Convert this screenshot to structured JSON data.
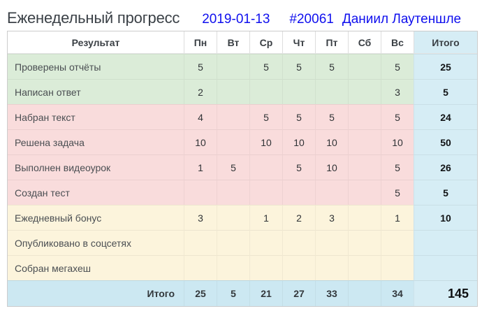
{
  "page": {
    "title": "Еженедельный прогресс",
    "date": "2019-01-13",
    "report_id": "#20061",
    "user_name": "Даниил Лаутеншле"
  },
  "colors": {
    "accent_blue_text": "#0f0fee",
    "row_green": "#dbecd8",
    "row_pink": "#f9dcdc",
    "row_cream": "#fcf4dc",
    "total_column": "#d6edf5",
    "footer_row": "#cce8f2"
  },
  "table": {
    "columns": [
      "Результат",
      "Пн",
      "Вт",
      "Ср",
      "Чт",
      "Пт",
      "Сб",
      "Вс",
      "Итого"
    ],
    "rows": [
      {
        "label": "Проверены отчёты",
        "group": "green",
        "values": [
          "5",
          "",
          "5",
          "5",
          "5",
          "",
          "5"
        ],
        "total": "25"
      },
      {
        "label": "Написан ответ",
        "group": "green",
        "values": [
          "2",
          "",
          "",
          "",
          "",
          "",
          "3"
        ],
        "total": "5"
      },
      {
        "label": "Набран текст",
        "group": "pink",
        "values": [
          "4",
          "",
          "5",
          "5",
          "5",
          "",
          "5"
        ],
        "total": "24"
      },
      {
        "label": "Решена задача",
        "group": "pink",
        "values": [
          "10",
          "",
          "10",
          "10",
          "10",
          "",
          "10"
        ],
        "total": "50"
      },
      {
        "label": "Выполнен видеоурок",
        "group": "pink",
        "values": [
          "1",
          "5",
          "",
          "5",
          "10",
          "",
          "5"
        ],
        "total": "26"
      },
      {
        "label": "Создан тест",
        "group": "pink",
        "values": [
          "",
          "",
          "",
          "",
          "",
          "",
          "5"
        ],
        "total": "5"
      },
      {
        "label": "Ежедневный бонус",
        "group": "cream",
        "values": [
          "3",
          "",
          "1",
          "2",
          "3",
          "",
          "1"
        ],
        "total": "10"
      },
      {
        "label": "Опубликовано в соцсетях",
        "group": "cream",
        "values": [
          "",
          "",
          "",
          "",
          "",
          "",
          ""
        ],
        "total": ""
      },
      {
        "label": "Собран мегахеш",
        "group": "cream",
        "values": [
          "",
          "",
          "",
          "",
          "",
          "",
          ""
        ],
        "total": ""
      }
    ],
    "footer": {
      "label": "Итого",
      "values": [
        "25",
        "5",
        "21",
        "27",
        "33",
        "",
        "34"
      ],
      "total": "145"
    }
  }
}
